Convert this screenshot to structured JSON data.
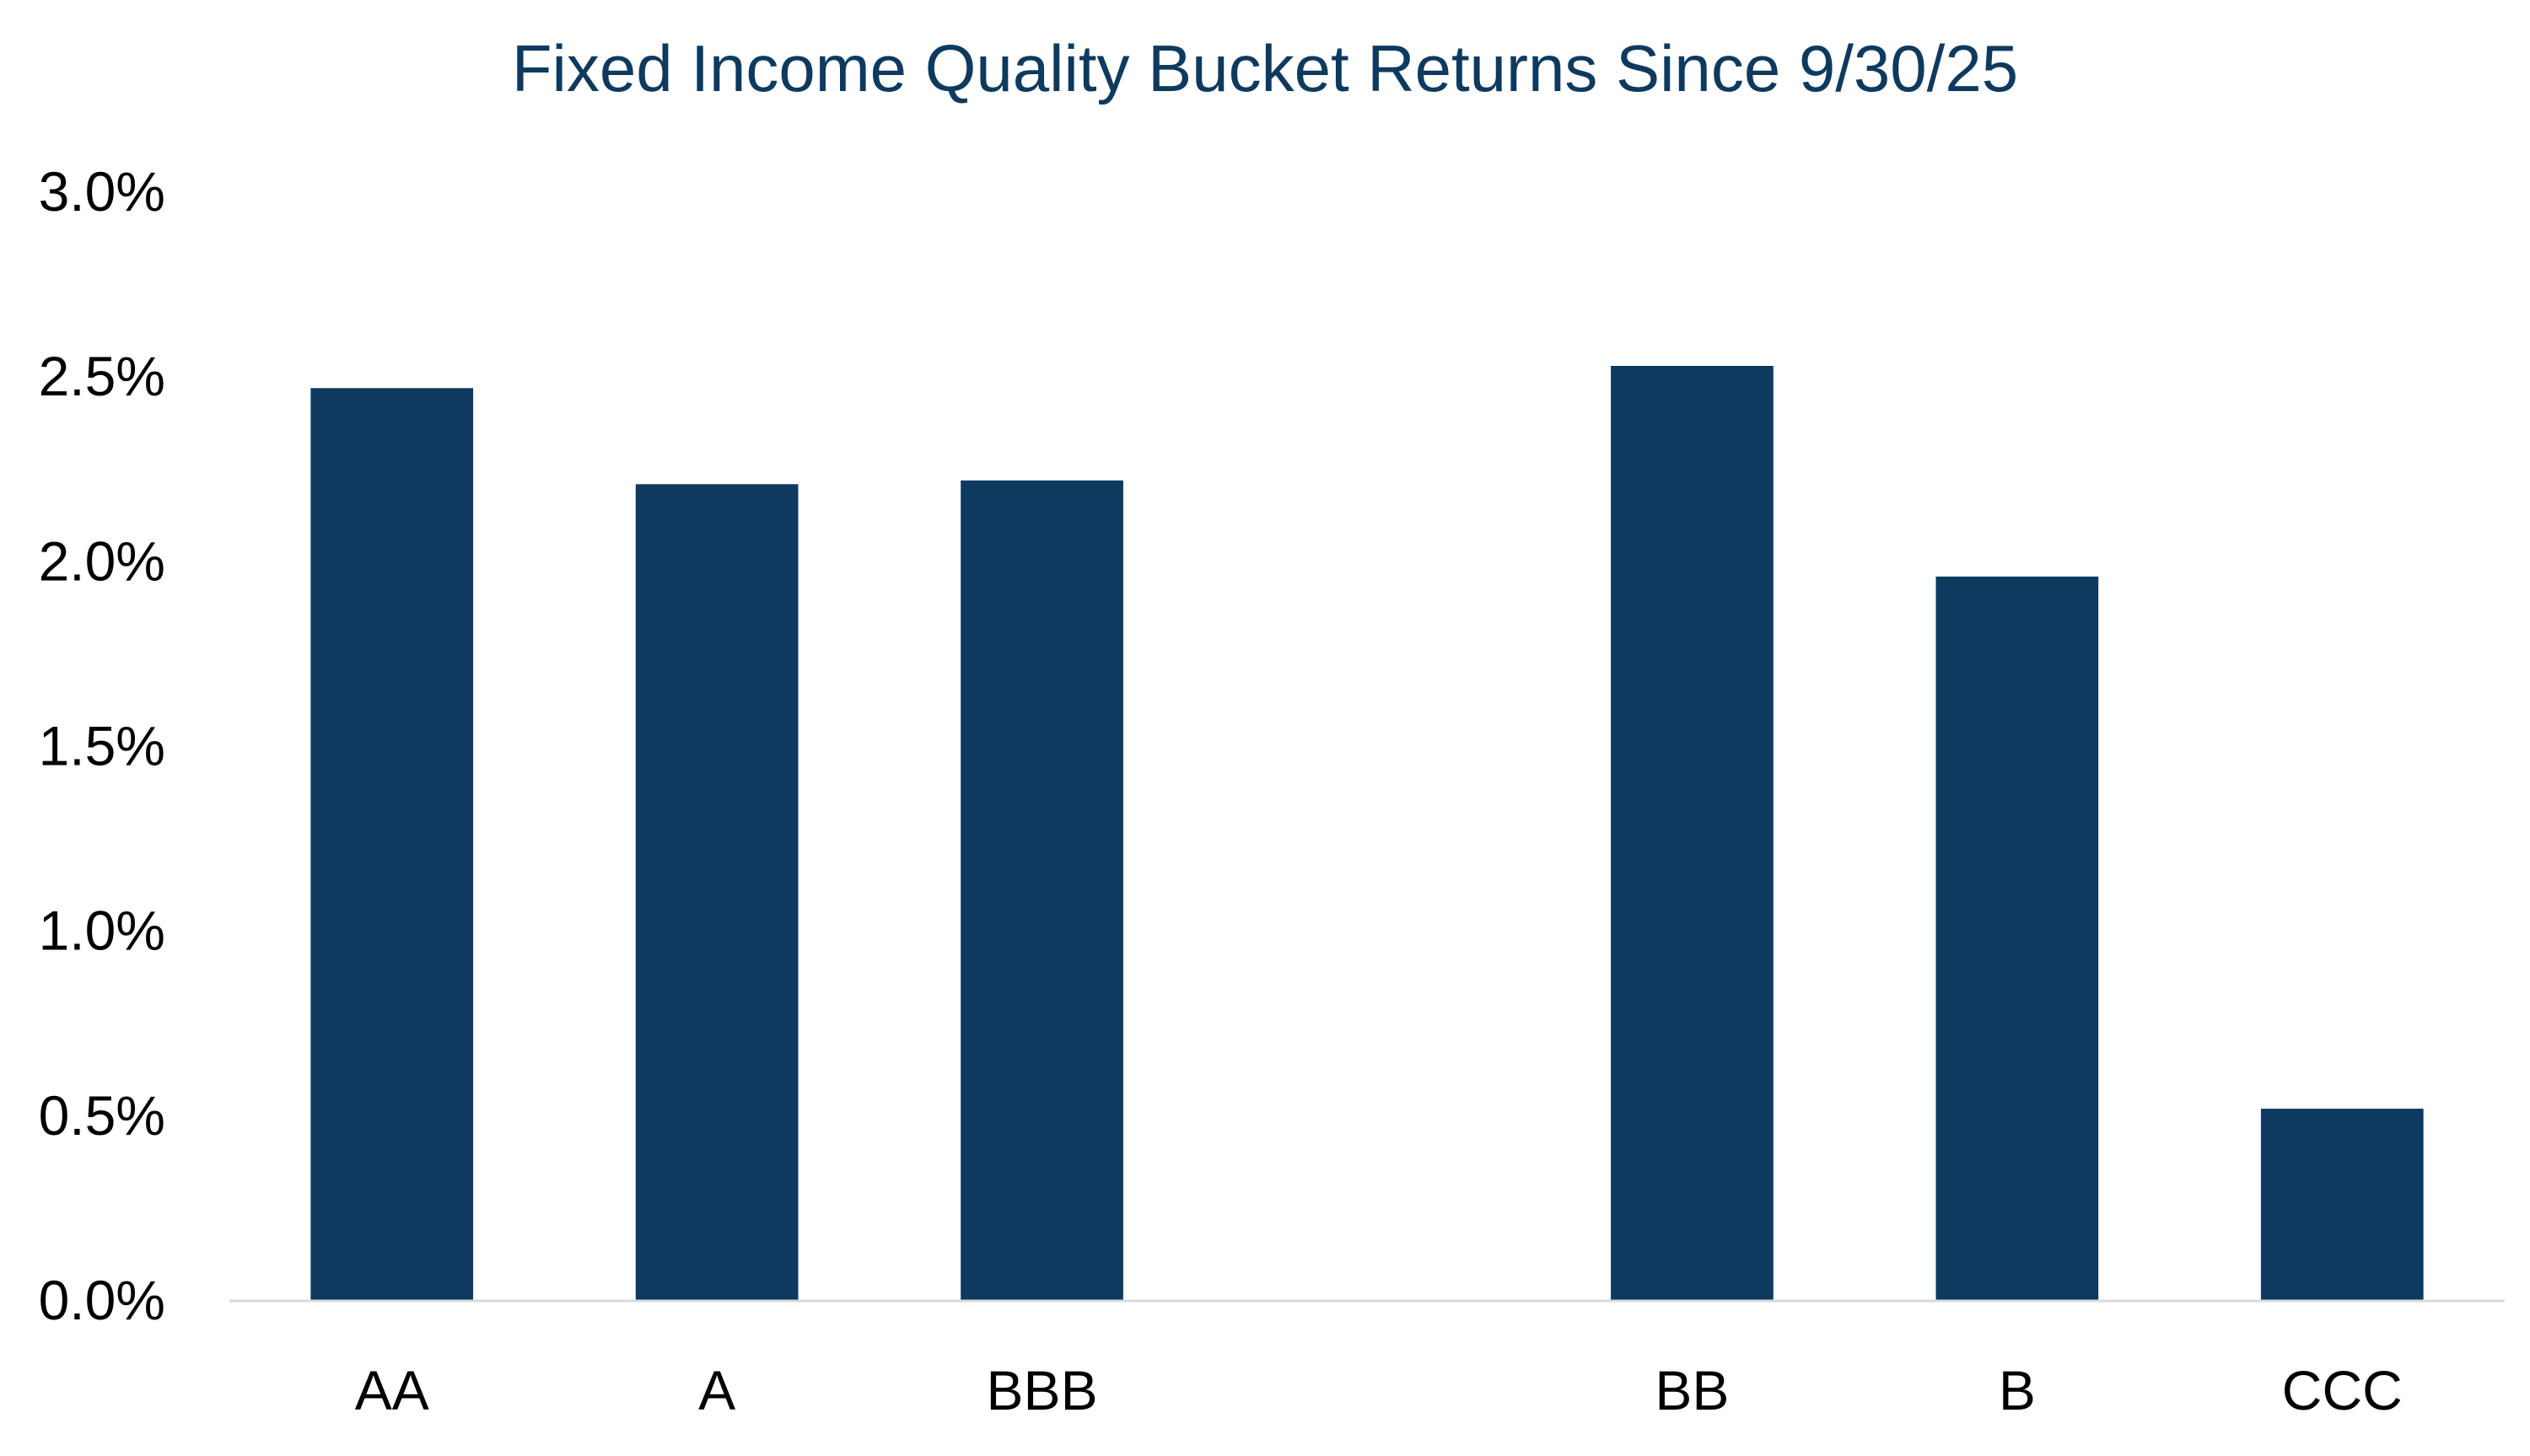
{
  "chart_data": {
    "type": "bar",
    "title": "Fixed Income Quality Bucket Returns Since 9/30/25",
    "xlabel": "",
    "ylabel": "",
    "categories": [
      "AA",
      "A",
      "BBB",
      "",
      "BB",
      "B",
      "CCC"
    ],
    "values": [
      2.47,
      2.21,
      2.22,
      null,
      2.53,
      1.96,
      0.52
    ],
    "ylim": [
      0,
      3.0
    ],
    "y_ticks": [
      0,
      0.5,
      1.0,
      1.5,
      2.0,
      2.5,
      3.0
    ],
    "y_tick_labels": [
      "0.0%",
      "0.5%",
      "1.0%",
      "1.5%",
      "2.0%",
      "2.5%",
      "3.0%"
    ],
    "value_unit": "%",
    "grid": false,
    "legend": "none",
    "colors": {
      "bar": "#0d3a5e",
      "title": "#0d3a5e",
      "axis": "#d9d9d9",
      "text": "#000000"
    }
  }
}
